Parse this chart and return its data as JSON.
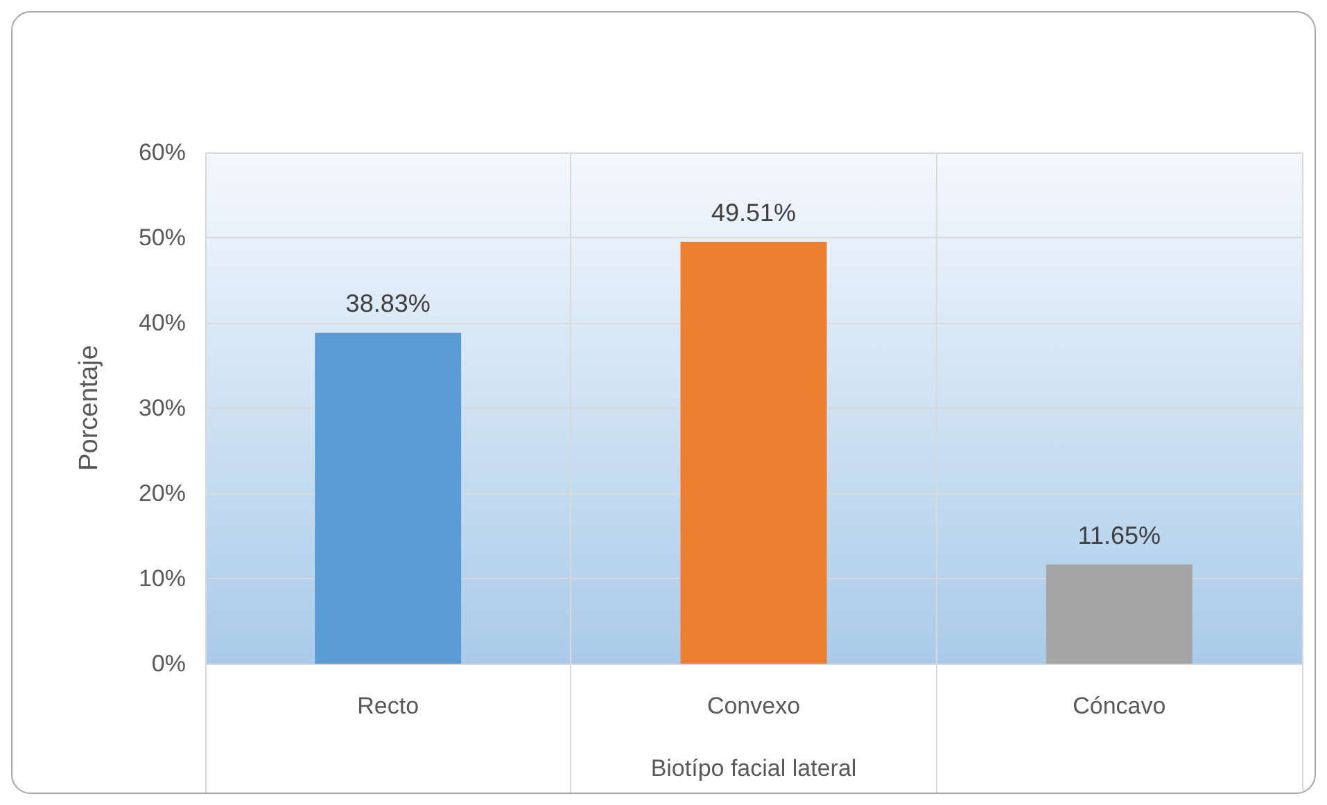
{
  "chart_data": {
    "type": "bar",
    "xlabel": "Biotípo facial lateral",
    "ylabel": "Porcentaje",
    "categories": [
      "Recto",
      "Convexo",
      "Cóncavo"
    ],
    "values": [
      38.83,
      49.51,
      11.65
    ],
    "colors": [
      "#5b9bd5",
      "#ed7d31",
      "#a5a5a5"
    ],
    "value_labels": [
      "38.83%",
      "49.51%",
      "11.65%"
    ],
    "ylim": [
      0,
      60
    ],
    "yticks": [
      {
        "value": 0,
        "label": "0%"
      },
      {
        "value": 10,
        "label": "10%"
      },
      {
        "value": 20,
        "label": "20%"
      },
      {
        "value": 30,
        "label": "30%"
      },
      {
        "value": 40,
        "label": "40%"
      },
      {
        "value": 50,
        "label": "50%"
      },
      {
        "value": 60,
        "label": "60%"
      }
    ],
    "grid": true
  }
}
